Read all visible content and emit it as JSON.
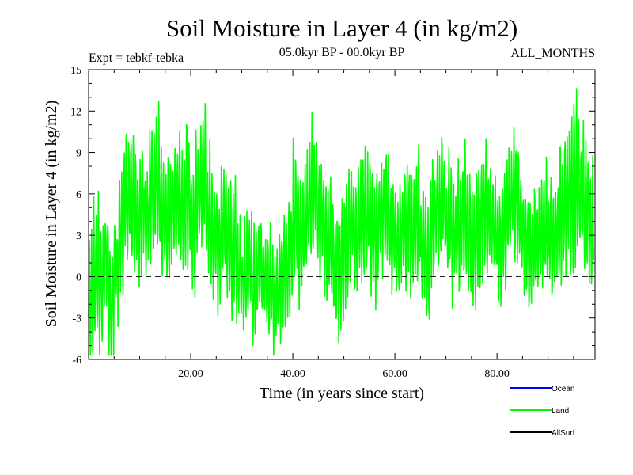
{
  "chart_data": {
    "type": "line",
    "title": "Soil Moisture in Layer 4 (in kg/m2)",
    "subtitle_left": "Expt = tebkf-tebka",
    "subtitle_center": "05.0kyr BP - 00.0kyr BP",
    "subtitle_right": "ALL_MONTHS",
    "xlabel": "Time (in years since start)",
    "ylabel": "Soil Moisture in Layer 4 (in kg/m2)",
    "xlim": [
      0,
      99.2
    ],
    "ylim": [
      -6,
      15
    ],
    "xticks": [
      20,
      40,
      60,
      80
    ],
    "xtick_labels": [
      "20.00",
      "40.00",
      "60.00",
      "80.00"
    ],
    "yticks": [
      -6,
      -3,
      0,
      3,
      6,
      9,
      12,
      15
    ],
    "ytick_labels": [
      "-6",
      "-3",
      "0",
      "3",
      "6",
      "9",
      "12",
      "15"
    ],
    "reference_line": {
      "y": 0,
      "style": "dashed",
      "color": "#000000"
    },
    "series": [
      {
        "name": "Land",
        "color": "#00ff00",
        "sampling": "monthly",
        "n_years": 99,
        "annual_mean": [
          -1.5,
          0.5,
          -1.0,
          1.0,
          -2.0,
          0.5,
          3.0,
          5.5,
          6.0,
          4.0,
          5.5,
          4.0,
          6.5,
          7.0,
          5.0,
          3.5,
          4.5,
          5.5,
          4.5,
          6.0,
          3.5,
          6.0,
          7.5,
          5.0,
          3.0,
          2.0,
          4.0,
          3.0,
          2.0,
          0.5,
          -0.5,
          0.5,
          -1.0,
          1.0,
          0.5,
          -0.5,
          -1.5,
          -0.5,
          0.5,
          2.0,
          4.5,
          3.0,
          4.0,
          6.0,
          6.5,
          4.0,
          3.0,
          2.5,
          1.0,
          0.5,
          3.0,
          4.0,
          2.5,
          3.5,
          5.0,
          4.0,
          3.0,
          4.5,
          5.0,
          3.5,
          2.0,
          3.0,
          4.0,
          3.5,
          4.5,
          2.5,
          0.5,
          3.5,
          5.0,
          5.5,
          4.0,
          3.0,
          3.5,
          4.5,
          3.0,
          2.5,
          4.0,
          5.0,
          4.5,
          3.5,
          2.0,
          3.0,
          5.0,
          6.0,
          4.5,
          3.0,
          1.5,
          2.0,
          3.0,
          4.0,
          3.0,
          2.5,
          4.5,
          5.5,
          6.0,
          7.0,
          6.0,
          5.0,
          4.0
        ],
        "seasonal_amplitude": [
          4.5,
          4.5,
          4.0,
          4.0,
          3.5,
          3.5,
          4.0,
          4.0,
          4.0,
          4.0,
          4.0,
          3.5,
          4.5,
          4.5,
          4.0,
          4.0,
          3.5,
          4.0,
          4.0,
          4.5,
          4.0,
          4.0,
          4.5,
          4.0,
          4.0,
          3.5,
          4.0,
          4.0,
          4.0,
          3.5,
          3.5,
          3.5,
          4.0,
          3.5,
          3.5,
          3.5,
          3.5,
          3.5,
          3.5,
          4.0,
          4.5,
          4.0,
          4.0,
          4.5,
          4.5,
          4.0,
          4.0,
          4.0,
          4.0,
          4.5,
          4.0,
          4.0,
          4.0,
          4.0,
          4.0,
          4.0,
          4.0,
          4.0,
          4.0,
          3.5,
          3.5,
          3.5,
          4.0,
          4.0,
          4.0,
          4.0,
          4.5,
          4.0,
          4.0,
          4.0,
          4.0,
          4.0,
          4.0,
          4.0,
          4.0,
          4.0,
          4.0,
          4.0,
          4.0,
          4.0,
          4.0,
          4.0,
          4.0,
          4.0,
          4.0,
          4.0,
          4.0,
          4.0,
          4.0,
          4.0,
          4.0,
          4.0,
          4.5,
          5.0,
          5.0,
          5.5,
          4.5,
          4.0,
          4.0
        ]
      }
    ],
    "legend": {
      "placement": "bottom-right",
      "entries": [
        {
          "label": "Ocean",
          "color": "#0000ff"
        },
        {
          "label": "Land",
          "color": "#00ff00"
        },
        {
          "label": "AllSurf",
          "color": "#000000"
        }
      ]
    }
  }
}
